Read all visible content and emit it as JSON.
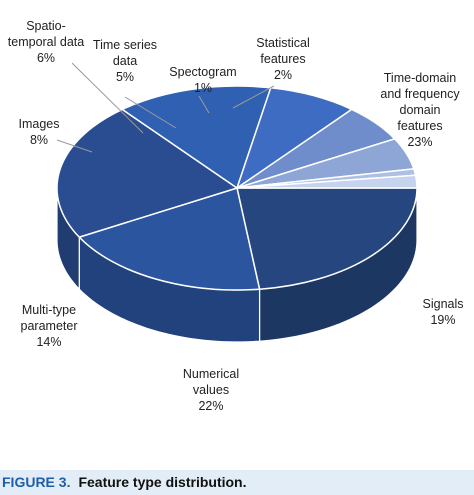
{
  "chart_data": {
    "type": "pie",
    "title": "",
    "categories": [
      "Time-domain and frequency domain features",
      "Signals",
      "Numerical values",
      "Multi-type parameter",
      "Images",
      "Spatio-temporal data",
      "Time series data",
      "Spectogram",
      "Statistical features"
    ],
    "values": [
      23,
      19,
      22,
      14,
      8,
      6,
      5,
      1,
      2
    ],
    "slices": [
      {
        "label": "Time-domain and frequency domain features",
        "lines": [
          "Time-domain",
          "and frequency",
          "domain",
          "features"
        ],
        "percent": "23%",
        "value": 23,
        "color": "#25467f"
      },
      {
        "label": "Signals",
        "lines": [
          "Signals"
        ],
        "percent": "19%",
        "value": 19,
        "color": "#2c55a0"
      },
      {
        "label": "Numerical values",
        "lines": [
          "Numerical",
          "values"
        ],
        "percent": "22%",
        "value": 22,
        "color": "#2a4d91"
      },
      {
        "label": "Multi-type parameter",
        "lines": [
          "Multi-type",
          "parameter"
        ],
        "percent": "14%",
        "value": 14,
        "color": "#3060b2"
      },
      {
        "label": "Images",
        "lines": [
          "Images"
        ],
        "percent": "8%",
        "value": 8,
        "color": "#3d6cc2"
      },
      {
        "label": "Spatio-temporal data",
        "lines": [
          "Spatio-",
          "temporal data"
        ],
        "percent": "6%",
        "value": 6,
        "color": "#6f8dcb"
      },
      {
        "label": "Time series data",
        "lines": [
          "Time series",
          "data"
        ],
        "percent": "5%",
        "value": 5,
        "color": "#8ea6d6"
      },
      {
        "label": "Spectogram",
        "lines": [
          "Spectogram"
        ],
        "percent": "1%",
        "value": 1,
        "color": "#adc0e3"
      },
      {
        "label": "Statistical features",
        "lines": [
          "Statistical",
          "features"
        ],
        "percent": "2%",
        "value": 2,
        "color": "#c6d3ec"
      }
    ],
    "start_angle_deg": 0,
    "direction": "clockwise",
    "style": "3d-tilted",
    "legend": "none"
  },
  "caption": {
    "figure_label": "FIGURE 3.",
    "text": "Feature type distribution."
  }
}
